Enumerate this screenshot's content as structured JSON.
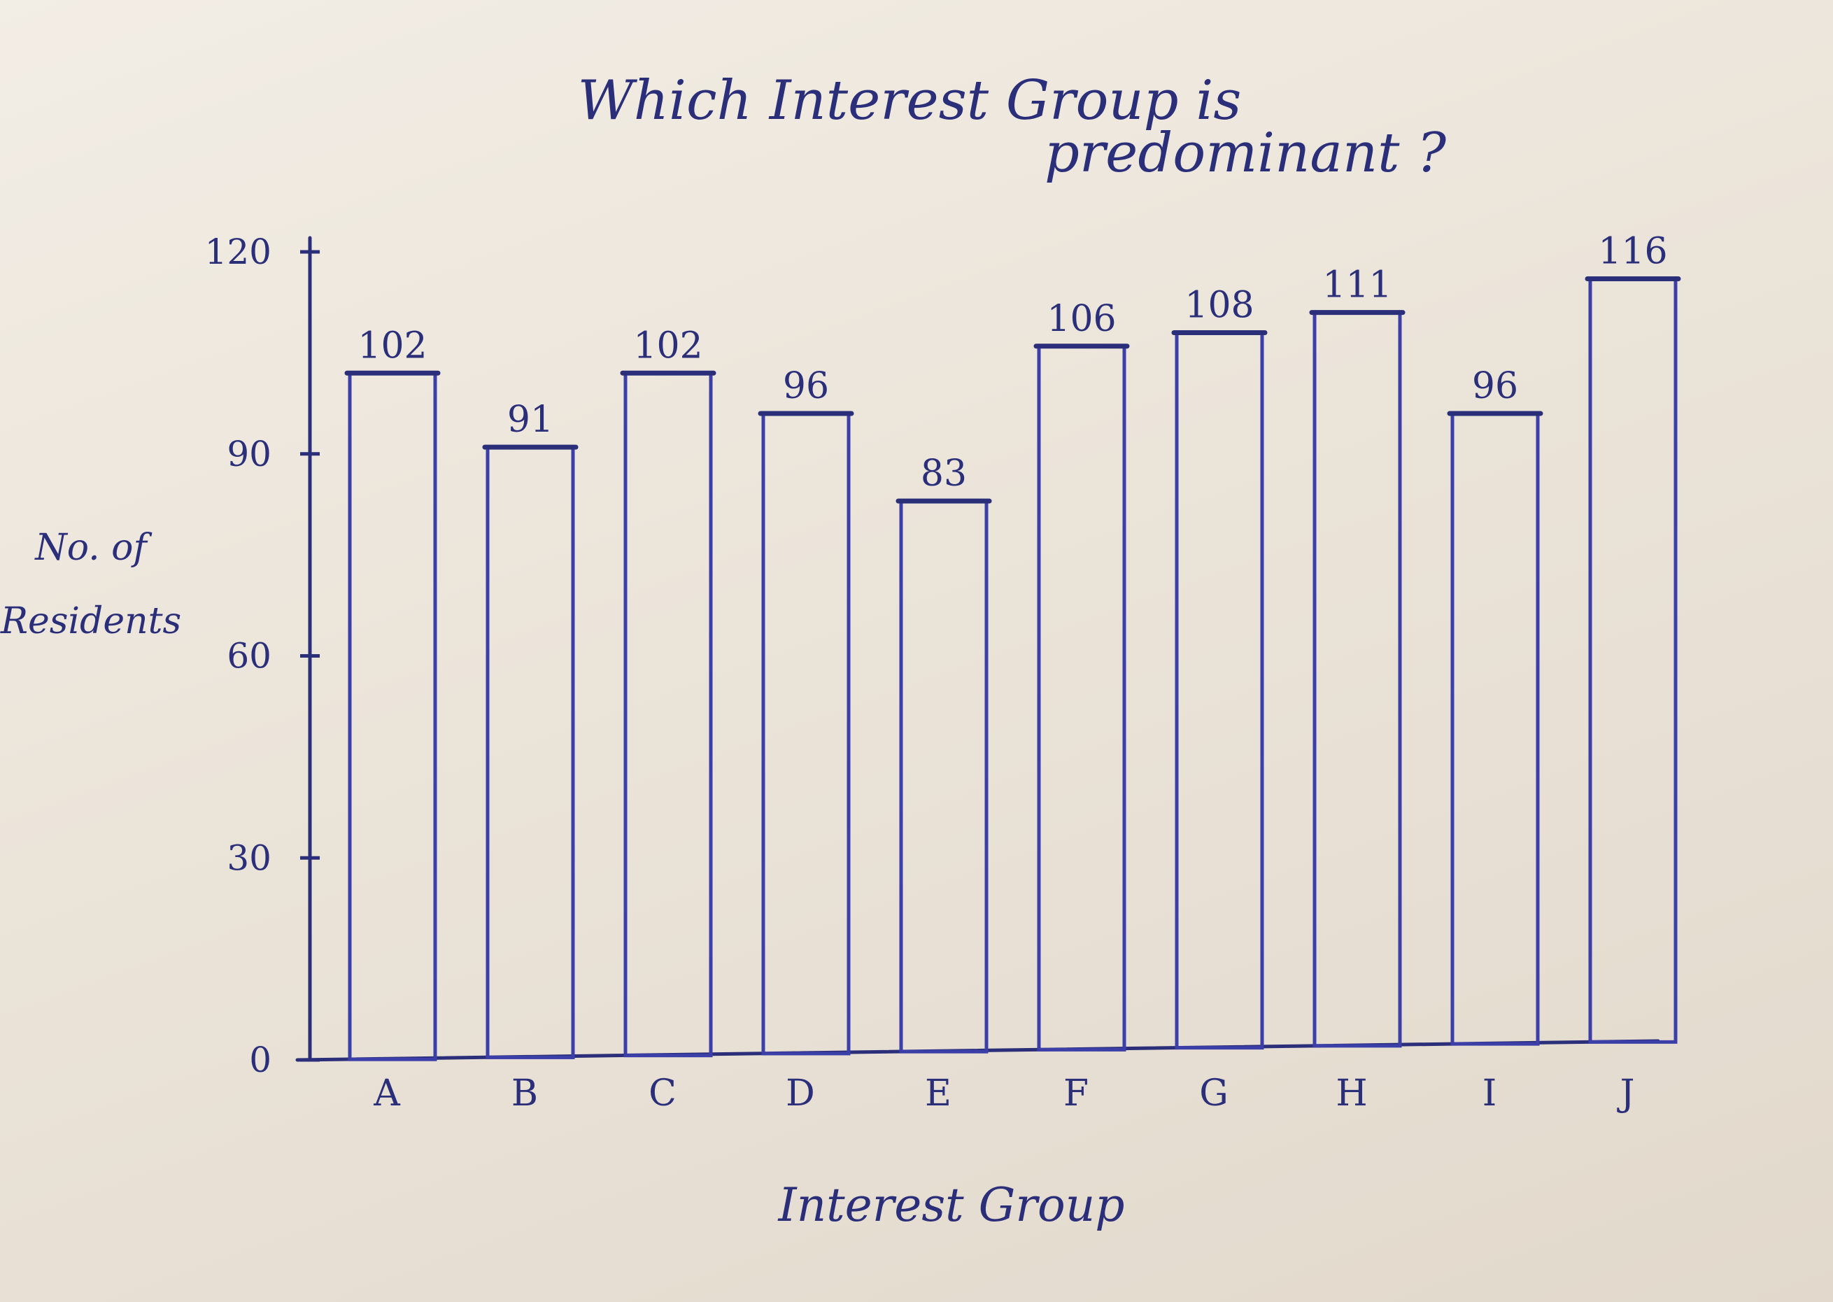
{
  "chart_data": {
    "type": "bar",
    "title": [
      "Which Interest Group is",
      "predominant ?"
    ],
    "xlabel": "Interest Group",
    "ylabel": [
      "No. of",
      "Residents"
    ],
    "categories": [
      "A",
      "B",
      "C",
      "D",
      "E",
      "F",
      "G",
      "H",
      "I",
      "J"
    ],
    "values": [
      102,
      91,
      102,
      96,
      83,
      106,
      108,
      111,
      96,
      116
    ],
    "value_labels": [
      "102",
      "91",
      "102",
      "96",
      "83",
      "106",
      "108",
      "111",
      "96",
      "116"
    ],
    "yticks": [
      0,
      30,
      60,
      90,
      120
    ],
    "ytick_labels": [
      "0",
      "30",
      "60",
      "90",
      "120"
    ],
    "ylim": [
      0,
      120
    ],
    "grid": false,
    "legend": "none",
    "ink_color": "#2b2f7a",
    "bar_outline_color": "#3c3fa8"
  }
}
